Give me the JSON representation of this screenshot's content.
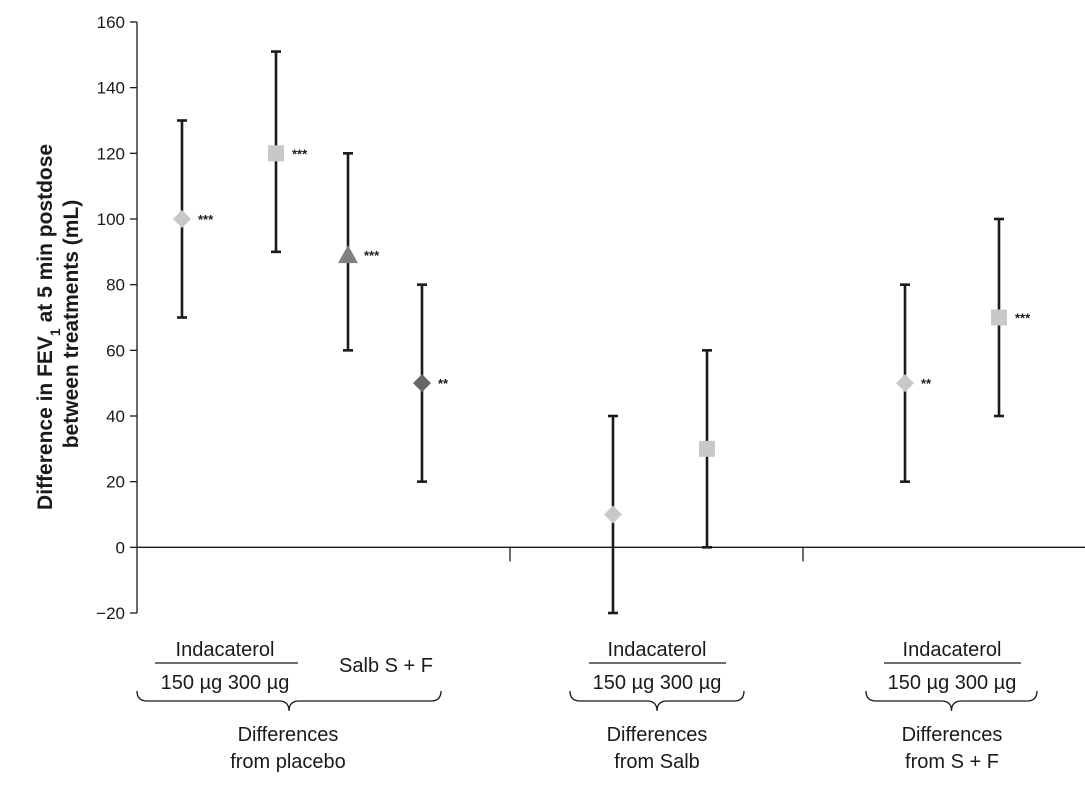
{
  "chart_data": {
    "type": "scatter",
    "ylabel": {
      "line1_pre": "Difference in FEV",
      "line1_sub": "1",
      "line1_post": " at 5 min postdose",
      "line2": "between treatments (mL)"
    },
    "ylim": [
      -20,
      160
    ],
    "yticks": [
      -20,
      0,
      20,
      40,
      60,
      80,
      100,
      120,
      140,
      160
    ],
    "ytick_labels": [
      "−20",
      "0",
      "20",
      "40",
      "60",
      "80",
      "100",
      "120",
      "140",
      "160"
    ],
    "grid": false,
    "points": [
      {
        "group": "Differences from placebo",
        "treatment": "Indacaterol 150 µg",
        "value": 100,
        "lower": 70,
        "upper": 130,
        "marker": "diamond",
        "color": "#c8c8c8",
        "sig": "***"
      },
      {
        "group": "Differences from placebo",
        "treatment": "Indacaterol 300 µg",
        "value": 120,
        "lower": 90,
        "upper": 151,
        "marker": "square",
        "color": "#c8c8c8",
        "sig": "***"
      },
      {
        "group": "Differences from placebo",
        "treatment": "Salb",
        "value": 89,
        "lower": 60,
        "upper": 120,
        "marker": "triangle",
        "color": "#808080",
        "sig": "***"
      },
      {
        "group": "Differences from placebo",
        "treatment": "S + F",
        "value": 50,
        "lower": 20,
        "upper": 80,
        "marker": "diamond",
        "color": "#666666",
        "sig": "**"
      },
      {
        "group": "Differences from Salb",
        "treatment": "Indacaterol 150 µg",
        "value": 10,
        "lower": -20,
        "upper": 40,
        "marker": "diamond",
        "color": "#c8c8c8",
        "sig": ""
      },
      {
        "group": "Differences from Salb",
        "treatment": "Indacaterol 300 µg",
        "value": 30,
        "lower": 0,
        "upper": 60,
        "marker": "square",
        "color": "#c8c8c8",
        "sig": ""
      },
      {
        "group": "Differences from S + F",
        "treatment": "Indacaterol 150 µg",
        "value": 50,
        "lower": 20,
        "upper": 80,
        "marker": "diamond",
        "color": "#c8c8c8",
        "sig": "**"
      },
      {
        "group": "Differences from S + F",
        "treatment": "Indacaterol 300 µg",
        "value": 70,
        "lower": 40,
        "upper": 100,
        "marker": "square",
        "color": "#c8c8c8",
        "sig": "***"
      }
    ],
    "x_groups": [
      {
        "header": "Indacaterol",
        "doses": "150 µg  300 µg",
        "extra": "Salb  S + F",
        "caption_line1": "Differences",
        "caption_line2": "from placebo"
      },
      {
        "header": "Indacaterol",
        "doses": "150 µg  300 µg",
        "extra": "",
        "caption_line1": "Differences",
        "caption_line2": "from Salb"
      },
      {
        "header": "Indacaterol",
        "doses": "150 µg  300 µg",
        "extra": "",
        "caption_line1": "Differences",
        "caption_line2": "from S + F"
      }
    ],
    "colors": {
      "axis": "#1a1a1a",
      "errorbar": "#1a1a1a"
    }
  }
}
